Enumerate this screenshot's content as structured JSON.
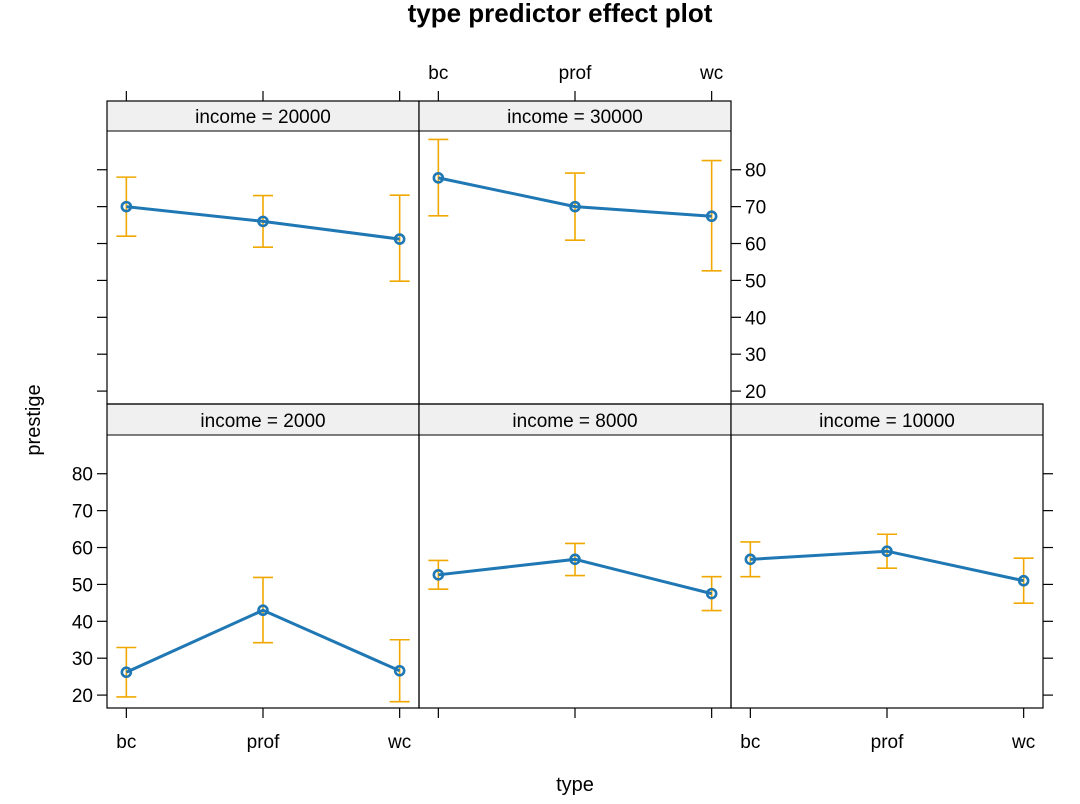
{
  "chart_data": {
    "type": "line",
    "title": "type predictor effect plot",
    "xlabel": "type",
    "ylabel": "prestige",
    "categories": [
      "bc",
      "prof",
      "wc"
    ],
    "yticks": [
      20,
      30,
      40,
      50,
      60,
      70,
      80
    ],
    "ylim": [
      16.5,
      90.5
    ],
    "line_color": "#1f78b4",
    "ci_color": "#f0a800",
    "panels": [
      {
        "strip": "income = 2000",
        "values": [
          26.2,
          43.0,
          26.6
        ],
        "lower": [
          19.5,
          34.2,
          18.2
        ],
        "upper": [
          32.9,
          51.9,
          35.0
        ]
      },
      {
        "strip": "income = 8000",
        "values": [
          52.6,
          56.8,
          47.5
        ],
        "lower": [
          48.7,
          52.4,
          42.9
        ],
        "upper": [
          56.5,
          61.1,
          52.1
        ]
      },
      {
        "strip": "income = 10000",
        "values": [
          56.8,
          59.0,
          51.0
        ],
        "lower": [
          52.1,
          54.4,
          44.9
        ],
        "upper": [
          61.5,
          63.6,
          57.1
        ]
      },
      {
        "strip": "income = 20000",
        "values": [
          70.0,
          66.0,
          61.2
        ],
        "lower": [
          62.0,
          59.0,
          49.8
        ],
        "upper": [
          78.0,
          73.0,
          73.1
        ]
      },
      {
        "strip": "income = 30000",
        "values": [
          77.8,
          70.0,
          67.4
        ],
        "lower": [
          67.5,
          60.9,
          52.6
        ],
        "upper": [
          88.2,
          79.1,
          82.5
        ]
      }
    ]
  }
}
